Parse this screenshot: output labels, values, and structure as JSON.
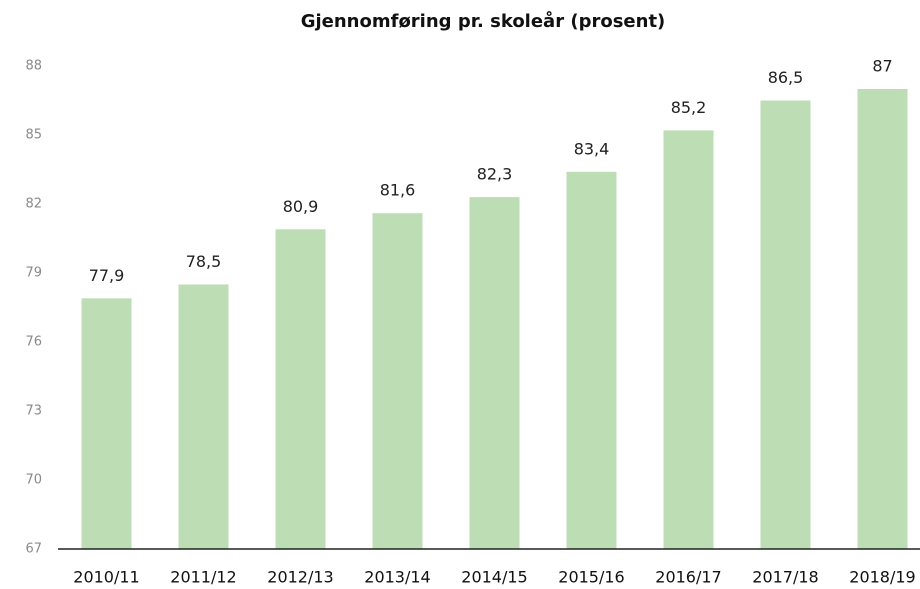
{
  "chart_data": {
    "type": "bar",
    "title": "Gjennomføring pr. skoleår (prosent)",
    "categories": [
      "2010/11",
      "2011/12",
      "2012/13",
      "2013/14",
      "2014/15",
      "2015/16",
      "2016/17",
      "2017/18",
      "2018/19"
    ],
    "values": [
      77.9,
      78.5,
      80.9,
      81.6,
      82.3,
      83.4,
      85.2,
      86.5,
      87
    ],
    "value_labels": [
      "77,9",
      "78,5",
      "80,9",
      "81,6",
      "82,3",
      "83,4",
      "85,2",
      "86,5",
      "87"
    ],
    "color": "#bddeb5",
    "ylim": [
      67,
      88
    ],
    "yticks": [
      67,
      70,
      73,
      76,
      79,
      82,
      85,
      88
    ],
    "grid": false
  }
}
